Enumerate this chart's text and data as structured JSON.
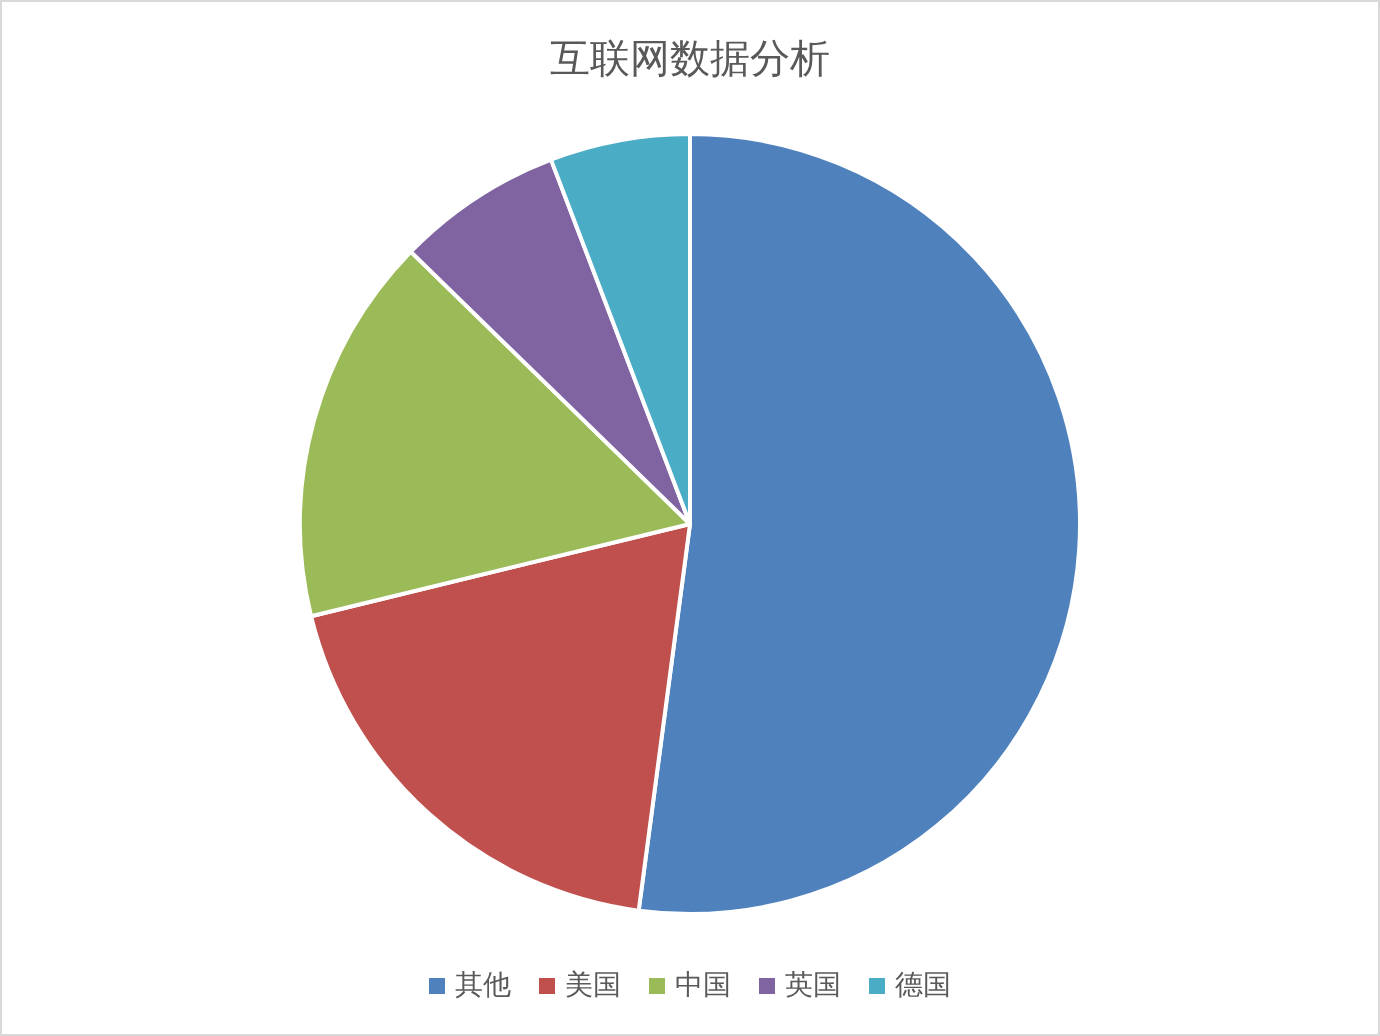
{
  "chart_data": {
    "type": "pie",
    "title": "互联网数据分析",
    "categories": [
      "其他",
      "美国",
      "中国",
      "英国",
      "德国"
    ],
    "values": [
      52.1,
      19.1,
      16.1,
      6.9,
      5.8
    ],
    "colors": [
      "#4f81bd",
      "#c0504d",
      "#9bbb59",
      "#8064a2",
      "#4bacc6"
    ],
    "legend": "bottom"
  }
}
